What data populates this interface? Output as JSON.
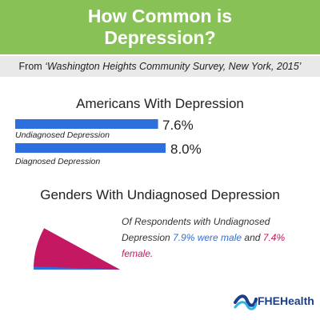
{
  "header": {
    "title_line1": "How Common is",
    "title_line2": "Depression?"
  },
  "source": {
    "prefix": "From ",
    "text": "‘Washington Heights Community Survey, New York, 2015’"
  },
  "chart_data": [
    {
      "type": "bar",
      "title": "Americans With Depression",
      "categories": [
        "Undiagnosed Depression",
        "Diagnosed Depression"
      ],
      "values": [
        7.6,
        8.0
      ],
      "value_labels": [
        "7.6%",
        "8.0%"
      ],
      "color": "#2d6fdc",
      "xlim": [
        0,
        8.0
      ]
    },
    {
      "type": "pie",
      "title": "Genders With Undiagnosed Depression",
      "categories": [
        "male",
        "female"
      ],
      "values": [
        7.9,
        7.4
      ],
      "colors": [
        "#2d6fdc",
        "#c51862"
      ]
    }
  ],
  "note": {
    "part1": "Of Respondents with Undiagnosed Depression ",
    "male_pct": "7.9% were male",
    "part2": " and ",
    "female_pct": "7.4% female."
  },
  "logo": {
    "text": "FHEHealth",
    "icon": "wave-logo-icon",
    "colors": [
      "#1c3f87",
      "#2fb3e6"
    ]
  }
}
